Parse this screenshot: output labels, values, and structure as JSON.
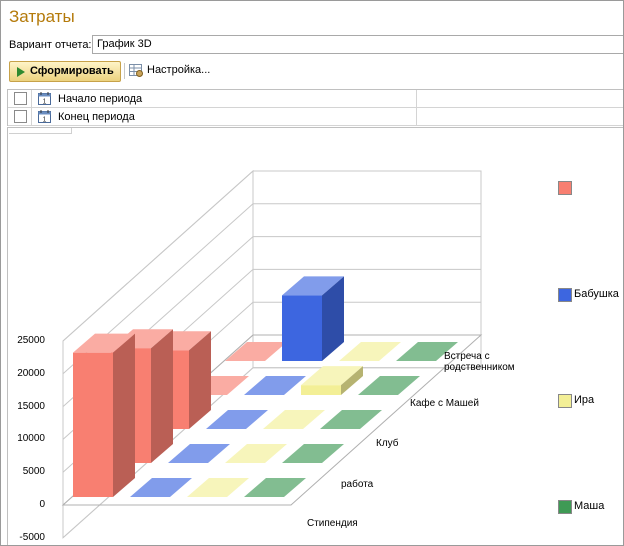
{
  "window": {
    "title": "Затраты"
  },
  "variant": {
    "label": "Вариант отчета:",
    "value": "График 3D"
  },
  "toolbar": {
    "generate_label": "Сформировать",
    "settings_label": "Настройка..."
  },
  "params": [
    {
      "label": "Начало периода",
      "checked": false
    },
    {
      "label": "Конец периода",
      "checked": false
    }
  ],
  "chart_data": {
    "type": "bar",
    "three_d": true,
    "y_ticks": [
      "25000",
      "20000",
      "15000",
      "10000",
      "5000",
      "0",
      "-5000"
    ],
    "ylim": [
      -5000,
      25000
    ],
    "categories": [
      "Стипендия",
      "работа",
      "Клуб",
      "Кафе  с Машей",
      "Встреча с родственником"
    ],
    "series": [
      {
        "name": "",
        "color": "#f87f71",
        "values": [
          22000,
          17500,
          12000,
          0,
          0
        ]
      },
      {
        "name": "Бабушка",
        "color": "#3d66e0",
        "values": [
          0,
          0,
          0,
          0,
          10000
        ]
      },
      {
        "name": "Ира",
        "color": "#f3ef96",
        "values": [
          0,
          0,
          0,
          1500,
          0
        ]
      },
      {
        "name": "Маша",
        "color": "#3f9a55",
        "values": [
          0,
          0,
          0,
          0,
          0
        ]
      }
    ],
    "legend_position": "right",
    "grid": true
  }
}
